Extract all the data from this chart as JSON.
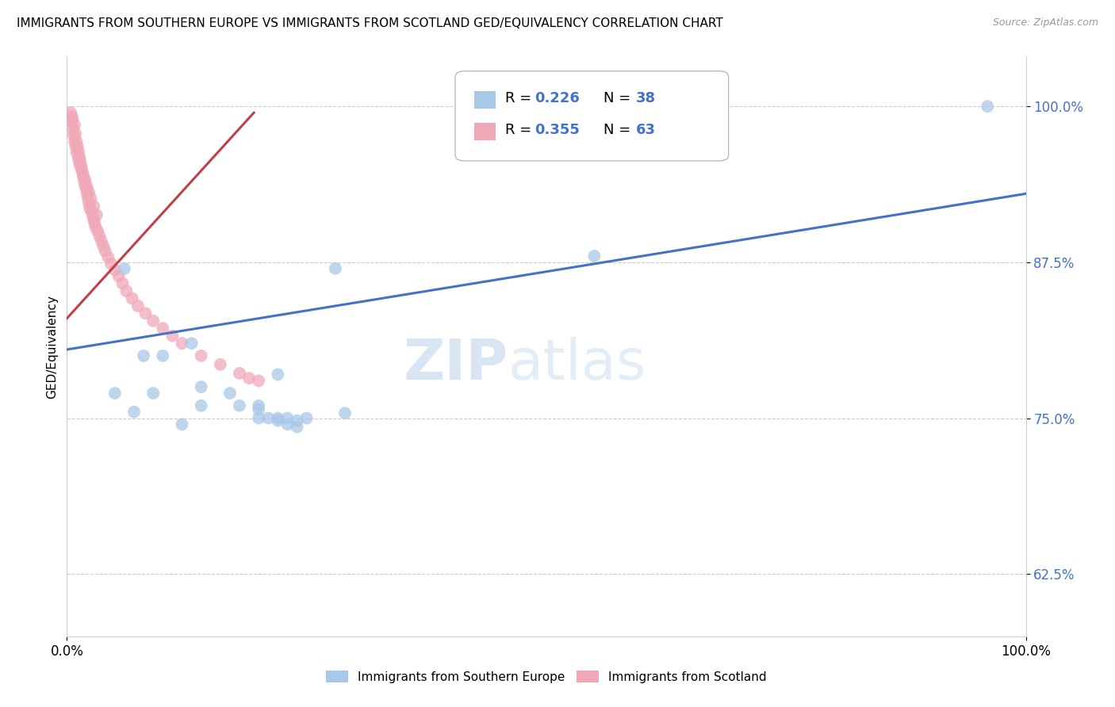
{
  "title": "IMMIGRANTS FROM SOUTHERN EUROPE VS IMMIGRANTS FROM SCOTLAND GED/EQUIVALENCY CORRELATION CHART",
  "source": "Source: ZipAtlas.com",
  "ylabel": "GED/Equivalency",
  "yticks": [
    0.625,
    0.75,
    0.875,
    1.0
  ],
  "ytick_labels": [
    "62.5%",
    "75.0%",
    "87.5%",
    "100.0%"
  ],
  "xlim": [
    0.0,
    1.0
  ],
  "ylim": [
    0.575,
    1.04
  ],
  "legend_label1": "Immigrants from Southern Europe",
  "legend_label2": "Immigrants from Scotland",
  "blue_color": "#A8C8E8",
  "pink_color": "#F0A8B8",
  "blue_line_color": "#4472C4",
  "pink_line_color": "#C0404A",
  "accent_color": "#4472C4",
  "watermark_zip": "ZIP",
  "watermark_atlas": "atlas",
  "blue_scatter_x": [
    0.28,
    0.06,
    0.08,
    0.05,
    0.13,
    0.1,
    0.09,
    0.07,
    0.14,
    0.12,
    0.18,
    0.22,
    0.2,
    0.55,
    0.14,
    0.17,
    0.2,
    0.2,
    0.21,
    0.22,
    0.22,
    0.23,
    0.23,
    0.24,
    0.24,
    0.25,
    0.29,
    0.96
  ],
  "blue_scatter_y": [
    0.87,
    0.87,
    0.8,
    0.77,
    0.81,
    0.8,
    0.77,
    0.755,
    0.76,
    0.745,
    0.76,
    0.785,
    0.76,
    0.88,
    0.775,
    0.77,
    0.757,
    0.75,
    0.75,
    0.75,
    0.748,
    0.75,
    0.745,
    0.748,
    0.743,
    0.75,
    0.754,
    1.0
  ],
  "pink_scatter_x": [
    0.006,
    0.008,
    0.009,
    0.01,
    0.011,
    0.012,
    0.013,
    0.014,
    0.015,
    0.016,
    0.017,
    0.018,
    0.019,
    0.02,
    0.021,
    0.022,
    0.023,
    0.024,
    0.026,
    0.027,
    0.028,
    0.029,
    0.03,
    0.032,
    0.034,
    0.036,
    0.038,
    0.04,
    0.043,
    0.046,
    0.05,
    0.054,
    0.058,
    0.062,
    0.068,
    0.074,
    0.082,
    0.09,
    0.1,
    0.11,
    0.12,
    0.14,
    0.16,
    0.18,
    0.19,
    0.004,
    0.005,
    0.005,
    0.006,
    0.007,
    0.008,
    0.009,
    0.01,
    0.012,
    0.013,
    0.015,
    0.017,
    0.019,
    0.021,
    0.023,
    0.025,
    0.028,
    0.031,
    0.2
  ],
  "pink_scatter_y": [
    0.99,
    0.985,
    0.978,
    0.972,
    0.968,
    0.964,
    0.96,
    0.956,
    0.952,
    0.948,
    0.944,
    0.94,
    0.936,
    0.934,
    0.93,
    0.926,
    0.922,
    0.918,
    0.915,
    0.912,
    0.909,
    0.906,
    0.903,
    0.9,
    0.896,
    0.892,
    0.888,
    0.884,
    0.879,
    0.874,
    0.869,
    0.864,
    0.858,
    0.852,
    0.846,
    0.84,
    0.834,
    0.828,
    0.822,
    0.816,
    0.81,
    0.8,
    0.793,
    0.786,
    0.782,
    0.995,
    0.992,
    0.988,
    0.982,
    0.977,
    0.972,
    0.968,
    0.963,
    0.958,
    0.954,
    0.95,
    0.945,
    0.941,
    0.936,
    0.931,
    0.926,
    0.92,
    0.913,
    0.78
  ],
  "blue_line_x": [
    0.0,
    1.0
  ],
  "blue_line_y": [
    0.805,
    0.93
  ],
  "pink_line_x": [
    0.0,
    0.195
  ],
  "pink_line_y": [
    0.83,
    0.995
  ],
  "dpi": 100,
  "figsize": [
    14.06,
    8.92
  ]
}
